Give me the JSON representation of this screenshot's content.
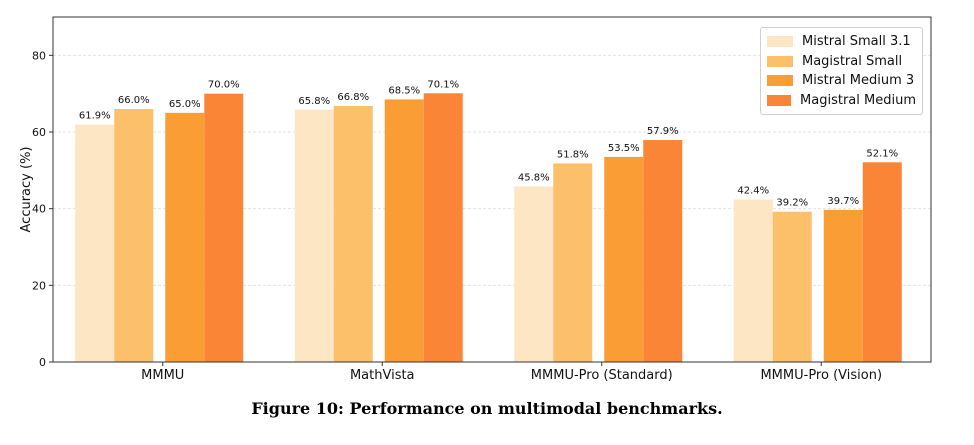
{
  "caption": "Figure 10: Performance on multimodal benchmarks.",
  "chart_data": {
    "type": "bar",
    "ylabel": "Accuracy (%)",
    "xlabel": "",
    "ylim": [
      0,
      90
    ],
    "yticks": [
      0,
      20,
      40,
      60,
      80
    ],
    "grid": true,
    "legend_position": "top-right",
    "categories": [
      "MMMU",
      "MathVista",
      "MMMU-Pro (Standard)",
      "MMMU-Pro (Vision)"
    ],
    "series": [
      {
        "name": "Mistral Small 3.1",
        "color": "#fde6c4",
        "values": [
          61.9,
          65.8,
          45.8,
          42.4
        ],
        "labels": [
          "61.9%",
          "65.8%",
          "45.8%",
          "42.4%"
        ]
      },
      {
        "name": "Magistral Small",
        "color": "#fcc06b",
        "values": [
          66.0,
          66.8,
          51.8,
          39.2
        ],
        "labels": [
          "66.0%",
          "66.8%",
          "51.8%",
          "39.2%"
        ]
      },
      {
        "name": "Mistral Medium 3",
        "color": "#fa9d34",
        "values": [
          65.0,
          68.5,
          53.5,
          39.7
        ],
        "labels": [
          "65.0%",
          "68.5%",
          "53.5%",
          "39.7%"
        ]
      },
      {
        "name": "Magistral Medium",
        "color": "#fb8537",
        "values": [
          70.0,
          70.1,
          57.9,
          52.1
        ],
        "labels": [
          "70.0%",
          "70.1%",
          "57.9%",
          "52.1%"
        ]
      }
    ]
  }
}
